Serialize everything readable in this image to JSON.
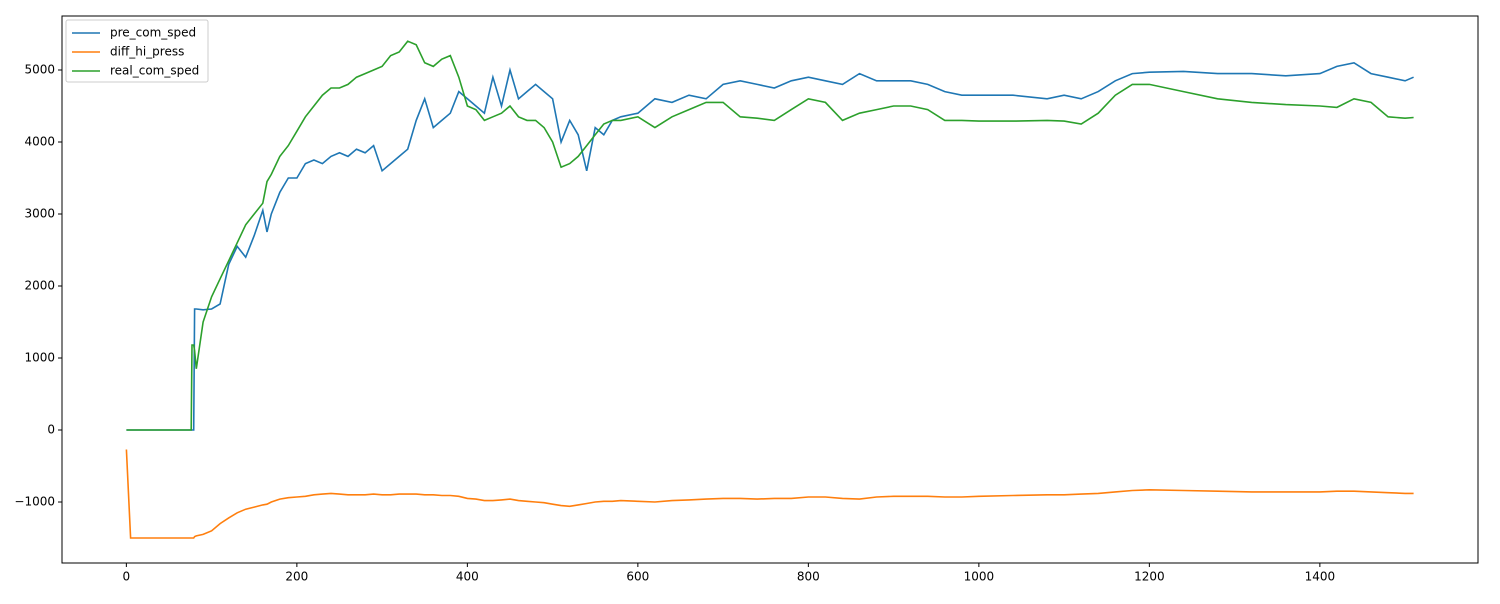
{
  "chart_data": {
    "type": "line",
    "x": [
      0,
      5,
      76,
      77,
      79,
      80,
      82,
      90,
      100,
      110,
      120,
      130,
      140,
      150,
      160,
      165,
      170,
      180,
      190,
      200,
      210,
      220,
      230,
      240,
      250,
      260,
      270,
      280,
      290,
      300,
      310,
      320,
      330,
      340,
      350,
      360,
      370,
      380,
      390,
      400,
      410,
      420,
      430,
      440,
      450,
      460,
      470,
      480,
      490,
      500,
      510,
      520,
      530,
      540,
      550,
      560,
      570,
      580,
      600,
      620,
      640,
      660,
      680,
      700,
      720,
      740,
      760,
      780,
      800,
      820,
      840,
      860,
      880,
      900,
      920,
      940,
      960,
      980,
      1000,
      1040,
      1080,
      1100,
      1120,
      1140,
      1160,
      1180,
      1200,
      1240,
      1280,
      1320,
      1360,
      1400,
      1420,
      1440,
      1460,
      1480,
      1500,
      1510
    ],
    "series": [
      {
        "name": "pre_com_sped",
        "color": "#1f77b4",
        "values": [
          0,
          0,
          0,
          0,
          0,
          1680,
          1680,
          1670,
          1680,
          1750,
          2300,
          2550,
          2400,
          2700,
          3050,
          2750,
          3000,
          3300,
          3500,
          3500,
          3700,
          3750,
          3700,
          3800,
          3850,
          3800,
          3900,
          3850,
          3950,
          3600,
          3700,
          3800,
          3900,
          4300,
          4600,
          4200,
          4300,
          4400,
          4700,
          4600,
          4500,
          4400,
          4900,
          4500,
          5000,
          4600,
          4700,
          4800,
          4700,
          4600,
          4000,
          4300,
          4100,
          3600,
          4200,
          4100,
          4300,
          4350,
          4400,
          4600,
          4550,
          4650,
          4600,
          4800,
          4850,
          4800,
          4750,
          4850,
          4900,
          4850,
          4800,
          4950,
          4850,
          4850,
          4850,
          4800,
          4700,
          4650,
          4650,
          4650,
          4600,
          4650,
          4600,
          4700,
          4850,
          4950,
          4970,
          4980,
          4950,
          4950,
          4920,
          4950,
          5050,
          5100,
          4950,
          4900,
          4850,
          4900
        ]
      },
      {
        "name": "diff_hi_press",
        "color": "#ff7f0e",
        "values": [
          -270,
          -1500,
          -1500,
          -1500,
          -1500,
          -1480,
          -1470,
          -1450,
          -1400,
          -1300,
          -1220,
          -1150,
          -1100,
          -1070,
          -1040,
          -1030,
          -1000,
          -960,
          -940,
          -930,
          -920,
          -900,
          -890,
          -880,
          -890,
          -900,
          -900,
          -900,
          -890,
          -900,
          -900,
          -890,
          -890,
          -890,
          -900,
          -900,
          -910,
          -910,
          -920,
          -950,
          -960,
          -980,
          -980,
          -970,
          -960,
          -980,
          -990,
          -1000,
          -1010,
          -1030,
          -1050,
          -1060,
          -1040,
          -1020,
          -1000,
          -990,
          -990,
          -980,
          -990,
          -1000,
          -980,
          -970,
          -960,
          -950,
          -950,
          -960,
          -950,
          -950,
          -930,
          -930,
          -950,
          -960,
          -930,
          -920,
          -920,
          -920,
          -930,
          -930,
          -920,
          -910,
          -900,
          -900,
          -890,
          -880,
          -860,
          -840,
          -830,
          -840,
          -850,
          -860,
          -860,
          -860,
          -850,
          -850,
          -860,
          -870,
          -880,
          -880
        ]
      },
      {
        "name": "real_com_sped",
        "color": "#2ca02c",
        "values": [
          0,
          0,
          0,
          1180,
          1180,
          1100,
          850,
          1500,
          1850,
          2100,
          2350,
          2600,
          2850,
          3000,
          3150,
          3450,
          3550,
          3800,
          3950,
          4150,
          4350,
          4500,
          4650,
          4750,
          4750,
          4800,
          4900,
          4950,
          5000,
          5050,
          5200,
          5250,
          5400,
          5350,
          5100,
          5050,
          5150,
          5200,
          4900,
          4500,
          4450,
          4300,
          4350,
          4400,
          4500,
          4350,
          4300,
          4300,
          4200,
          4000,
          3650,
          3700,
          3800,
          3950,
          4100,
          4250,
          4300,
          4300,
          4350,
          4200,
          4350,
          4450,
          4550,
          4550,
          4350,
          4330,
          4300,
          4450,
          4600,
          4550,
          4300,
          4400,
          4450,
          4500,
          4500,
          4450,
          4300,
          4300,
          4290,
          4290,
          4300,
          4290,
          4250,
          4400,
          4650,
          4800,
          4800,
          4700,
          4600,
          4550,
          4520,
          4500,
          4480,
          4600,
          4550,
          4350,
          4330,
          4340
        ]
      }
    ],
    "xlim": [
      -75.5,
      1585.5
    ],
    "xticks": [
      0,
      200,
      400,
      600,
      800,
      1000,
      1200,
      1400
    ],
    "ylim": [
      -1847,
      5750
    ],
    "yticks": [
      {
        "value": -1000,
        "label": "−1000"
      },
      0,
      1000,
      2000,
      3000,
      4000,
      5000
    ],
    "legend": "upper left"
  }
}
